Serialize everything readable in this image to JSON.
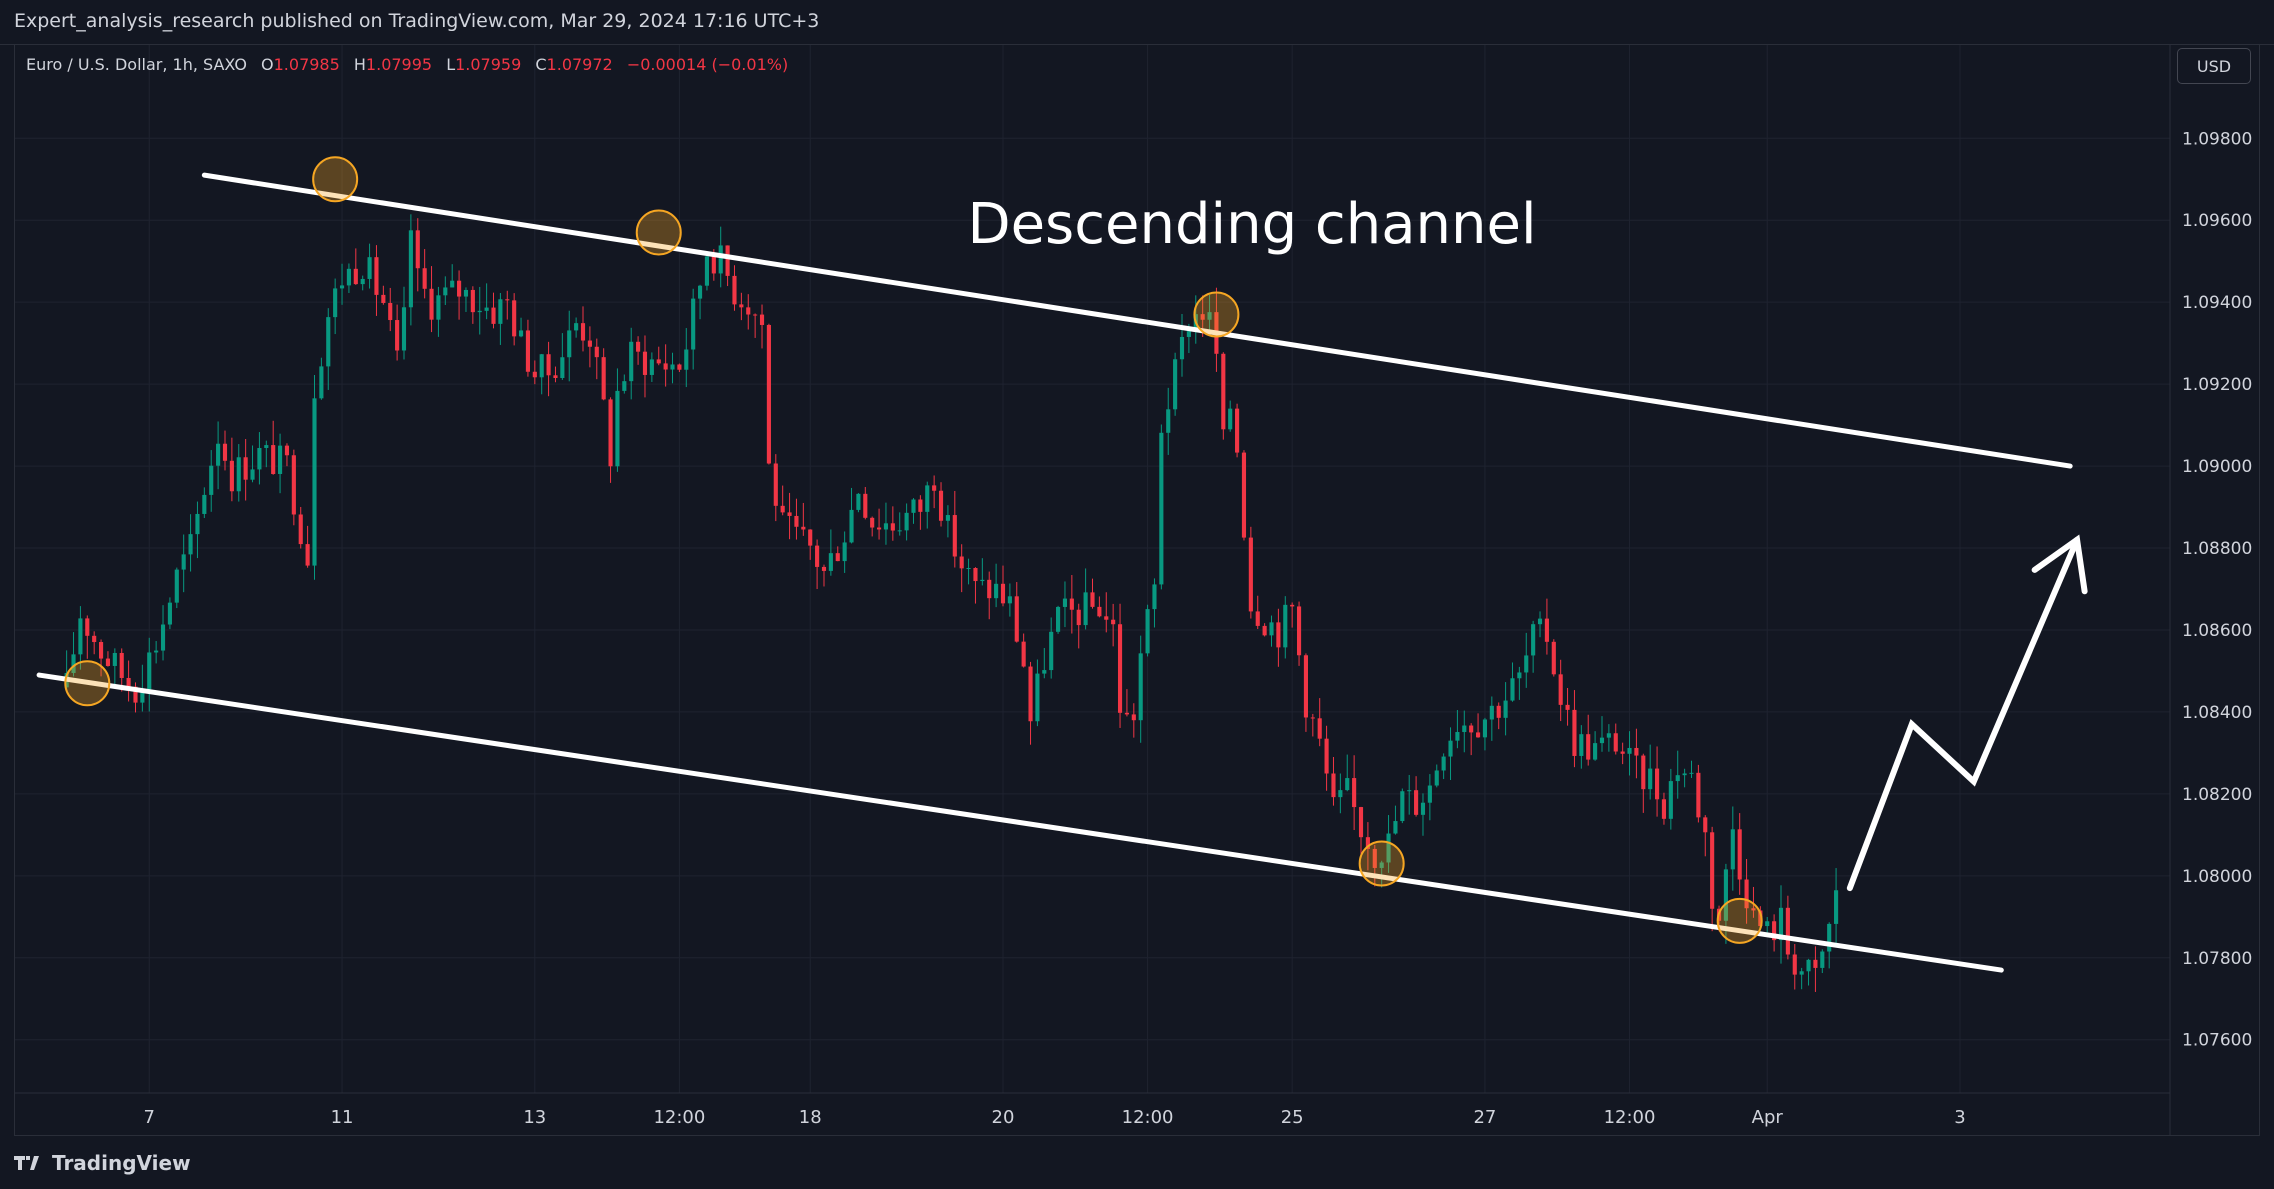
{
  "attribution": "Expert_analysis_research published on TradingView.com, Mar 29, 2024 17:16 UTC+3",
  "symbol": {
    "name": "Euro / U.S. Dollar, 1h, SAXO",
    "open_label": "O",
    "open": "1.07985",
    "high_label": "H",
    "high": "1.07995",
    "low_label": "L",
    "low": "1.07959",
    "close_label": "C",
    "close": "1.07972",
    "change": "−0.00014 (−0.01%)"
  },
  "currency_button": "USD",
  "footer": {
    "brand": "TradingView"
  },
  "colors": {
    "background": "#131722",
    "up": "#089981",
    "down": "#f23645",
    "grid": "#1f2330",
    "text": "#d1d4dc",
    "line": "#ffffff",
    "marker": "#f5a623"
  },
  "chart_data": {
    "type": "candlestick",
    "title": "Descending channel",
    "symbol": "EURUSD",
    "timeframe": "1h",
    "y_axis": {
      "ylim": [
        1.0747,
        1.0993
      ],
      "ticks": [
        "1.09800",
        "1.09600",
        "1.09400",
        "1.09200",
        "1.09000",
        "1.08800",
        "1.08600",
        "1.08400",
        "1.08200",
        "1.08000",
        "1.07800",
        "1.07600"
      ],
      "tick_values": [
        1.098,
        1.096,
        1.094,
        1.092,
        1.09,
        1.088,
        1.086,
        1.084,
        1.082,
        1.08,
        1.078,
        1.076
      ]
    },
    "x_axis": {
      "ticks": [
        "7",
        "11",
        "13",
        "12:00",
        "18",
        "20",
        "12:00",
        "25",
        "27",
        "12:00",
        "Apr",
        "3"
      ],
      "tick_index": [
        12,
        40,
        68,
        89,
        108,
        136,
        157,
        178,
        206,
        227,
        247,
        275
      ],
      "xlim": [
        -7.5,
        305.5
      ]
    },
    "price_path": [
      [
        0,
        1.0846
      ],
      [
        2,
        1.0864
      ],
      [
        5,
        1.0855
      ],
      [
        8,
        1.0849
      ],
      [
        10,
        1.0846
      ],
      [
        13,
        1.0857
      ],
      [
        16,
        1.0873
      ],
      [
        18,
        1.088
      ],
      [
        20,
        1.0895
      ],
      [
        22,
        1.0908
      ],
      [
        24,
        1.0898
      ],
      [
        28,
        1.0903
      ],
      [
        32,
        1.09
      ],
      [
        35,
        1.0878
      ],
      [
        36,
        1.092
      ],
      [
        38,
        1.0937
      ],
      [
        40,
        1.0946
      ],
      [
        43,
        1.095
      ],
      [
        46,
        1.094
      ],
      [
        48,
        1.0925
      ],
      [
        49,
        1.0935
      ],
      [
        50,
        1.0958
      ],
      [
        51,
        1.0945
      ],
      [
        53,
        1.094
      ],
      [
        57,
        1.0943
      ],
      [
        60,
        1.094
      ],
      [
        62,
        1.0938
      ],
      [
        64,
        1.094
      ],
      [
        66,
        1.093
      ],
      [
        68,
        1.0923
      ],
      [
        70,
        1.0923
      ],
      [
        72,
        1.0928
      ],
      [
        74,
        1.0935
      ],
      [
        76,
        1.0932
      ],
      [
        78,
        1.0914
      ],
      [
        79,
        1.0903
      ],
      [
        80,
        1.0918
      ],
      [
        82,
        1.0927
      ],
      [
        86,
        1.0925
      ],
      [
        89,
        1.0925
      ],
      [
        90,
        1.093
      ],
      [
        92,
        1.0945
      ],
      [
        93,
        1.0953
      ],
      [
        95,
        1.095
      ],
      [
        97,
        1.0943
      ],
      [
        99,
        1.094
      ],
      [
        101,
        1.0935
      ],
      [
        102,
        1.09
      ],
      [
        104,
        1.0885
      ],
      [
        108,
        1.088
      ],
      [
        110,
        1.0874
      ],
      [
        113,
        1.0884
      ],
      [
        115,
        1.0895
      ],
      [
        117,
        1.0887
      ],
      [
        120,
        1.0886
      ],
      [
        124,
        1.089
      ],
      [
        126,
        1.0898
      ],
      [
        128,
        1.0884
      ],
      [
        130,
        1.0876
      ],
      [
        132,
        1.087
      ],
      [
        135,
        1.087
      ],
      [
        137,
        1.0866
      ],
      [
        139,
        1.0852
      ],
      [
        140,
        1.0838
      ],
      [
        142,
        1.0853
      ],
      [
        144,
        1.0863
      ],
      [
        146,
        1.0864
      ],
      [
        150,
        1.0866
      ],
      [
        152,
        1.086
      ],
      [
        153,
        1.0842
      ],
      [
        154,
        1.0838
      ],
      [
        155,
        1.084
      ],
      [
        156,
        1.0854
      ],
      [
        158,
        1.087
      ],
      [
        159,
        1.091
      ],
      [
        161,
        1.0922
      ],
      [
        163,
        1.0936
      ],
      [
        165,
        1.0938
      ],
      [
        166,
        1.0935
      ],
      [
        167,
        1.0927
      ],
      [
        168,
        1.0905
      ],
      [
        169,
        1.0915
      ],
      [
        170,
        1.0905
      ],
      [
        172,
        1.0867
      ],
      [
        174,
        1.0863
      ],
      [
        176,
        1.086
      ],
      [
        178,
        1.0865
      ],
      [
        180,
        1.0843
      ],
      [
        182,
        1.0832
      ],
      [
        184,
        1.0816
      ],
      [
        186,
        1.082
      ],
      [
        188,
        1.0812
      ],
      [
        190,
        1.0806
      ],
      [
        192,
        1.0808
      ],
      [
        194,
        1.0819
      ],
      [
        196,
        1.0818
      ],
      [
        198,
        1.0822
      ],
      [
        200,
        1.0833
      ],
      [
        202,
        1.0838
      ],
      [
        205,
        1.0838
      ],
      [
        208,
        1.0842
      ],
      [
        211,
        1.0848
      ],
      [
        213,
        1.0858
      ],
      [
        215,
        1.0859
      ],
      [
        217,
        1.0844
      ],
      [
        219,
        1.0833
      ],
      [
        222,
        1.0831
      ],
      [
        225,
        1.0833
      ],
      [
        228,
        1.0825
      ],
      [
        230,
        1.0824
      ],
      [
        232,
        1.0818
      ],
      [
        234,
        1.0827
      ],
      [
        236,
        1.0824
      ],
      [
        238,
        1.081
      ],
      [
        239,
        1.0795
      ],
      [
        240,
        1.079
      ],
      [
        241,
        1.08
      ],
      [
        242,
        1.0812
      ],
      [
        243,
        1.0803
      ],
      [
        245,
        1.079
      ],
      [
        247,
        1.0786
      ],
      [
        249,
        1.0789
      ],
      [
        250,
        1.0782
      ],
      [
        252,
        1.0777
      ],
      [
        254,
        1.0775
      ],
      [
        255,
        1.0781
      ],
      [
        256,
        1.0787
      ],
      [
        257,
        1.0797
      ]
    ],
    "annotations": {
      "label": "Descending channel",
      "upper_line": [
        [
          20,
          1.0971
        ],
        [
          291,
          1.09
        ]
      ],
      "lower_line": [
        [
          -4,
          1.0849
        ],
        [
          281,
          1.0777
        ]
      ],
      "touch_points": [
        [
          39,
          1.097
        ],
        [
          86,
          1.0957
        ],
        [
          167,
          1.0937
        ],
        [
          191,
          1.0803
        ],
        [
          243,
          1.0789
        ],
        [
          3,
          1.0847
        ]
      ],
      "projection": [
        [
          259,
          1.0797
        ],
        [
          268,
          1.0837
        ],
        [
          277,
          1.0823
        ],
        [
          292,
          1.0882
        ]
      ]
    }
  }
}
